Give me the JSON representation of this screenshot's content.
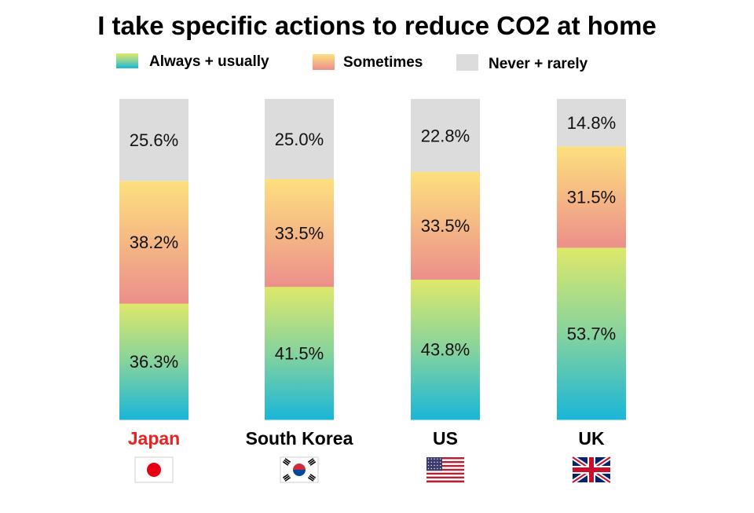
{
  "chart_data": {
    "type": "bar",
    "stacked": true,
    "normalized_percent": true,
    "title": "I take specific actions to reduce CO2 at home",
    "categories": [
      "Japan",
      "South Korea",
      "US",
      "UK"
    ],
    "category_colors": [
      "#e8231f",
      "#000000",
      "#000000",
      "#000000"
    ],
    "series": [
      {
        "name": "Always + usually",
        "values": [
          36.3,
          41.5,
          43.8,
          53.7
        ],
        "labels": [
          "36.3%",
          "41.5%",
          "43.8%",
          "53.7%"
        ],
        "gradient": [
          "#dfe86a",
          "#1ab6d8"
        ]
      },
      {
        "name": "Sometimes",
        "values": [
          38.2,
          33.5,
          33.5,
          31.5
        ],
        "labels": [
          "38.2%",
          "33.5%",
          "33.5%",
          "31.5%"
        ],
        "gradient": [
          "#fde07e",
          "#ec8f8b"
        ]
      },
      {
        "name": "Never + rarely",
        "values": [
          25.6,
          25.0,
          22.8,
          14.8
        ],
        "labels": [
          "25.6%",
          "25.0%",
          "22.8%",
          "14.8%"
        ],
        "color": "#dcdcdc"
      }
    ],
    "flags": [
      "japan-flag-icon",
      "south-korea-flag-icon",
      "us-flag-icon",
      "uk-flag-icon"
    ],
    "legend_position": "top",
    "grid": false,
    "axes_visible": false
  }
}
